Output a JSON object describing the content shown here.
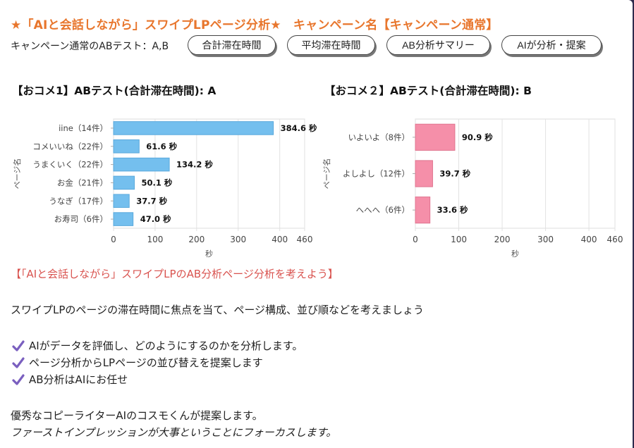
{
  "header": {
    "title": "★「AIと会話しながら」スワイプLPページ分析★　キャンペーン名【キャンペーン通常】",
    "subtitle": "キャンペーン通常のABテスト：A,B"
  },
  "buttons": [
    {
      "label": "合計滞在時間"
    },
    {
      "label": "平均滞在時間"
    },
    {
      "label": "AB分析サマリー"
    },
    {
      "label": "AIが分析・提案"
    }
  ],
  "colors": {
    "accent": "#e8762d",
    "barA": "#74bfee",
    "barB": "#f58fa9",
    "heading": "#d9534f",
    "check": "#7a5fbf"
  },
  "chart_data": [
    {
      "type": "bar",
      "orientation": "horizontal",
      "title": "【おコメ1】ABテスト(合計滞在時間): A",
      "categories": [
        "iine（14件）",
        "コメいいね（22件）",
        "うまくいく（22件）",
        "お金（21件）",
        "うなぎ（17件）",
        "お寿司（6件）"
      ],
      "values": [
        384.6,
        61.6,
        134.2,
        50.1,
        37.7,
        47.0
      ],
      "value_labels": [
        "384.6 秒",
        "61.6 秒",
        "134.2 秒",
        "50.1 秒",
        "37.7 秒",
        "47.0 秒"
      ],
      "xlabel": "秒",
      "ylabel": "ページ名",
      "xlim": [
        0,
        460
      ],
      "xticks": [
        "0",
        "100",
        "200",
        "300",
        "400",
        "460"
      ],
      "xtick_values": [
        0,
        100,
        200,
        300,
        400,
        460
      ],
      "grid": true
    },
    {
      "type": "bar",
      "orientation": "horizontal",
      "title": "【おコメ２】ABテスト(合計滞在時間): B",
      "categories": [
        "いよいよ（8件）",
        "よしよし（12件）",
        "へへへ（6件）"
      ],
      "values": [
        90.9,
        39.7,
        33.6
      ],
      "value_labels": [
        "90.9 秒",
        "39.7 秒",
        "33.6 秒"
      ],
      "xlabel": "秒",
      "ylabel": "ページ名",
      "xlim": [
        0,
        460
      ],
      "xticks": [
        "0",
        "100",
        "200",
        "300",
        "400",
        "460"
      ],
      "xtick_values": [
        0,
        100,
        200,
        300,
        400,
        460
      ],
      "grid": true
    }
  ],
  "content": {
    "heading": "【「AIと会話しながら」スワイプLPのAB分析ページ分析を考えよう】",
    "intro": "スワイプLPのページの滞在時間に焦点を当て、ページ構成、並び順などを考えましょう",
    "checks": [
      "AIがデータを評価し、どのようにするのかを分析します。",
      "ページ分析からLPページの並び替えを提案します",
      "AB分析はAIにお任せ"
    ],
    "closing1": "優秀なコピーライターAIのコスモくんが提案します。",
    "closing2": "ファーストインプレッションが大事ということにフォーカスします。"
  }
}
